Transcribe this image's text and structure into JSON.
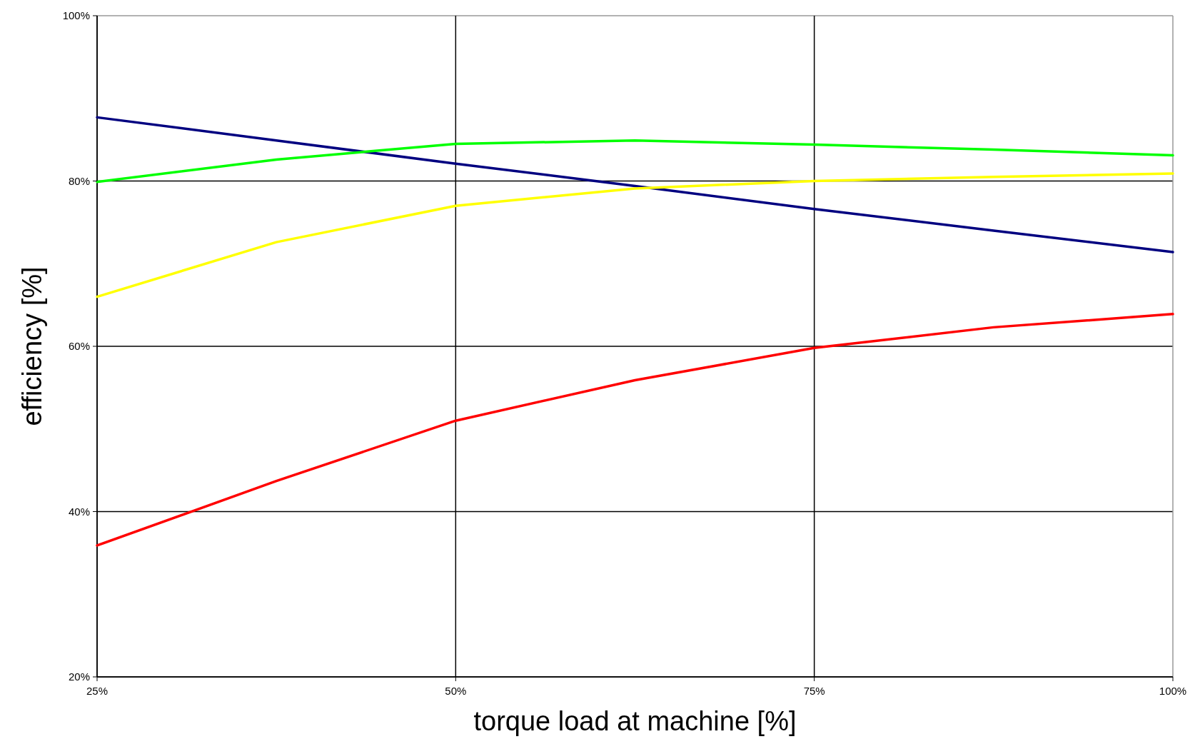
{
  "chart_data": {
    "type": "line",
    "xlabel": "torque load at machine [%]",
    "ylabel": "efficiency [%]",
    "x": [
      25,
      37.5,
      50,
      62.5,
      75,
      87.5,
      100
    ],
    "series": [
      {
        "color": "#000080",
        "values": [
          87.7,
          84.9,
          82.1,
          79.4,
          76.6,
          74.0,
          71.4
        ]
      },
      {
        "color": "#00ff00",
        "values": [
          79.9,
          82.6,
          84.5,
          84.9,
          84.4,
          83.8,
          83.1
        ]
      },
      {
        "color": "#ffff00",
        "values": [
          66.0,
          72.6,
          77.0,
          79.1,
          80.0,
          80.5,
          80.9
        ]
      },
      {
        "color": "#ff0000",
        "values": [
          35.9,
          43.7,
          51.0,
          55.9,
          59.8,
          62.3,
          63.9
        ]
      }
    ],
    "xlim": [
      25,
      100
    ],
    "xticks": [
      {
        "value": 25,
        "label": "25%"
      },
      {
        "value": 50,
        "label": "50%"
      },
      {
        "value": 75,
        "label": "75%"
      },
      {
        "value": 100,
        "label": "100%"
      }
    ],
    "ylim": [
      20,
      100
    ],
    "yticks": [
      {
        "value": 20,
        "label": "20%"
      },
      {
        "value": 40,
        "label": "40%"
      },
      {
        "value": 60,
        "label": "60%"
      },
      {
        "value": 80,
        "label": "80%"
      },
      {
        "value": 100,
        "label": "100%"
      }
    ],
    "grid": true,
    "line_style": "solid",
    "marker": "none"
  }
}
